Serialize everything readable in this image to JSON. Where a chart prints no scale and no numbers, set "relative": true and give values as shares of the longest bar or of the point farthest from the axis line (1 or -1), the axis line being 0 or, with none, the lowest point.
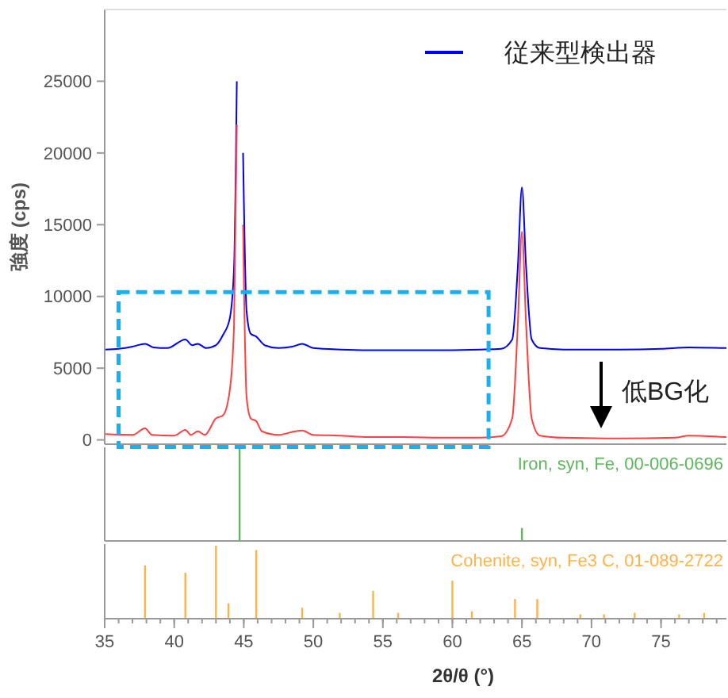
{
  "chart_data": [
    {
      "type": "line",
      "ylabel": "強度 (cps)",
      "xlim": [
        35,
        79.7
      ],
      "ylim": [
        -300,
        30000
      ],
      "yticks": [
        0,
        5000,
        10000,
        15000,
        20000,
        25000
      ],
      "tick_labels": "y",
      "grid": false,
      "legend": "top right",
      "annotations": [
        "低BG化"
      ],
      "series": [
        {
          "name": "従来型検出器",
          "color": "#0000ff",
          "x": [
            35,
            36,
            37,
            37.9,
            38.5,
            39.5,
            40.8,
            41.3,
            41.7,
            42.3,
            43,
            43.5,
            44,
            44.3,
            44.5,
            44.6,
            44.8,
            44.95,
            45.2,
            45.5,
            45.9,
            46.5,
            47.5,
            48.5,
            49.2,
            50,
            52,
            55,
            58,
            62,
            63.5,
            64.3,
            64.7,
            65,
            65.3,
            65.7,
            66.3,
            68,
            72,
            75,
            77,
            79.7
          ],
          "values": [
            6300,
            6350,
            6500,
            6700,
            6450,
            6400,
            7000,
            6600,
            6700,
            6400,
            6600,
            7300,
            8500,
            12000,
            25000,
            null,
            null,
            20000,
            9000,
            7400,
            7200,
            6600,
            6400,
            6500,
            6700,
            6400,
            6300,
            6250,
            6250,
            6300,
            6350,
            7000,
            12000,
            17600,
            12000,
            7000,
            6400,
            6300,
            6300,
            6350,
            6450,
            6400
          ]
        },
        {
          "color": "#ff4040",
          "x": [
            35,
            37,
            37.9,
            38.4,
            40,
            40.8,
            41.2,
            41.7,
            42.2,
            43,
            43.5,
            44,
            44.3,
            44.5,
            44.6,
            44.8,
            44.95,
            45.2,
            45.5,
            45.9,
            46.3,
            47.5,
            48.7,
            49.2,
            50,
            51.9,
            54,
            56,
            60,
            62,
            63.5,
            64.3,
            64.7,
            65,
            65.3,
            65.7,
            66.3,
            68,
            72,
            76,
            77,
            79.7
          ],
          "values": [
            400,
            350,
            800,
            350,
            300,
            700,
            350,
            600,
            350,
            1500,
            1700,
            3500,
            8000,
            22000,
            null,
            null,
            15000,
            3000,
            1500,
            1300,
            600,
            350,
            600,
            650,
            350,
            300,
            200,
            200,
            150,
            150,
            250,
            1500,
            8000,
            14500,
            8000,
            1500,
            300,
            150,
            100,
            150,
            300,
            200
          ]
        }
      ]
    },
    {
      "type": "bar",
      "title": "Iron, syn, Fe, 00-006-0696",
      "relative": true,
      "xlim": [
        35,
        79.7
      ],
      "tick_labels": false,
      "color": "#5cb85c",
      "x": [
        44.7,
        65.0
      ],
      "values": [
        1,
        0.14
      ]
    },
    {
      "type": "bar",
      "title": "Cohenite, syn, Fe3 C, 01-089-2722",
      "relative": true,
      "xlim": [
        35,
        79.7
      ],
      "xticks": [
        35,
        40,
        45,
        50,
        55,
        60,
        65,
        70,
        75
      ],
      "tick_labels": "x",
      "xlabel": "2θ/θ (°)",
      "color": "#ffb347",
      "x": [
        37.9,
        40.8,
        43.0,
        43.9,
        45.9,
        49.2,
        51.9,
        54.3,
        56.1,
        60.0,
        61.4,
        64.5,
        66.1,
        69.2,
        70.9,
        73.1,
        76.3,
        78.1
      ],
      "values": [
        0.73,
        0.63,
        1,
        0.21,
        0.94,
        0.15,
        0.08,
        0.38,
        0.08,
        0.52,
        0.1,
        0.27,
        0.27,
        0.06,
        0.06,
        0.08,
        0.06,
        0.08
      ]
    }
  ]
}
